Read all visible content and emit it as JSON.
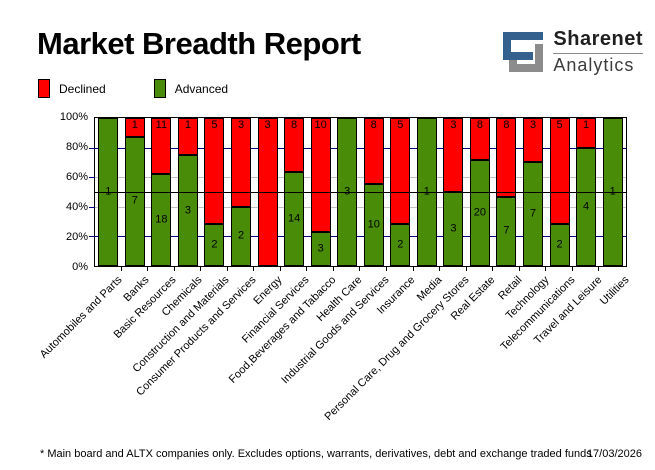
{
  "header": {
    "title": "Market Breadth Report"
  },
  "logo": {
    "line1": "Sharenet",
    "line2": "Analytics",
    "icon_blue": "#33608C",
    "icon_gray": "#8C8C8C"
  },
  "legend": [
    {
      "label": "Declined",
      "color": "#FF0000"
    },
    {
      "label": "Advanced",
      "color": "#488C07"
    }
  ],
  "footer": {
    "note": "* Main board and ALTX companies only. Excludes options, warrants, derivatives, debt and exchange traded funds",
    "date": "17/03/2026"
  },
  "chart_data": {
    "type": "bar",
    "stacked": "percent",
    "title": "Market Breadth Report",
    "xlabel": "",
    "ylabel": "",
    "ylim": [
      0,
      100
    ],
    "y_ticks": [
      "100%",
      "80%",
      "60%",
      "40%",
      "20%",
      "0%"
    ],
    "legend_position": "top-left",
    "reference_line_pct": 50,
    "gridlines": [
      {
        "pct": 80,
        "color": "#000080"
      },
      {
        "pct": 60,
        "color": "#C0C0C0"
      },
      {
        "pct": 40,
        "color": "#C0C0C0"
      },
      {
        "pct": 20,
        "color": "#000080"
      }
    ],
    "categories": [
      "Automobiles and Parts",
      "Banks",
      "Basic Resources",
      "Chemicals",
      "Construction and Materials",
      "Consumer Products and Services",
      "Energy",
      "Financial Services",
      "Food,Beverages and Tabacco",
      "Health Care",
      "Industrial Goods and Services",
      "Insurance",
      "Media",
      "Personal Care, Drug and Grocery Stores",
      "Real Estate",
      "Retail",
      "Technology",
      "Telecommunications",
      "Travel and Leisure",
      "Utilities"
    ],
    "series": [
      {
        "name": "Declined",
        "color": "#FF0000",
        "values": [
          0,
          1,
          11,
          1,
          5,
          3,
          3,
          8,
          10,
          0,
          8,
          5,
          0,
          3,
          8,
          8,
          3,
          5,
          1,
          0
        ]
      },
      {
        "name": "Advanced",
        "color": "#488C07",
        "values": [
          1,
          7,
          18,
          3,
          2,
          2,
          0,
          14,
          3,
          3,
          10,
          2,
          1,
          3,
          20,
          7,
          7,
          2,
          4,
          1
        ]
      }
    ]
  }
}
